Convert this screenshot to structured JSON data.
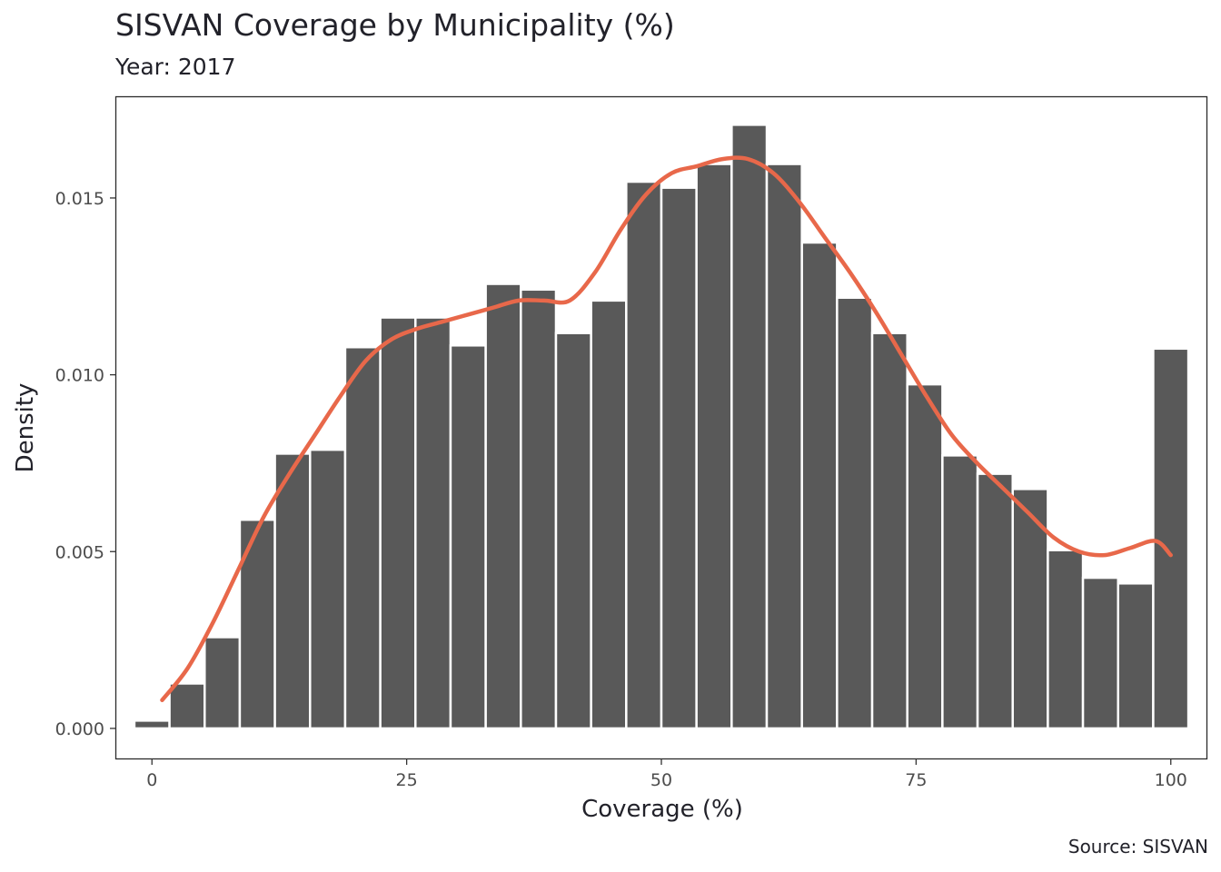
{
  "chart_data": {
    "type": "bar",
    "title": "SISVAN Coverage by Municipality (%)",
    "subtitle": "Year: 2017",
    "xlabel": "Coverage (%)",
    "ylabel": "Density",
    "caption": "Source: SISVAN",
    "xlim": [
      -3.5,
      103.5
    ],
    "ylim": [
      -0.00085,
      0.01785
    ],
    "x_ticks": [
      0,
      25,
      50,
      75,
      100
    ],
    "y_ticks": [
      0.0,
      0.005,
      0.01,
      0.015
    ],
    "y_tick_labels": [
      "0.000",
      "0.005",
      "0.010",
      "0.015"
    ],
    "grid": false,
    "bin_width": 3.4483,
    "bar_color": "#595959",
    "bar_outline_color": "#ffffff",
    "density_color": "#e8684a",
    "series": [
      {
        "type": "histogram",
        "bin_centers": [
          0,
          3.448,
          6.897,
          10.345,
          13.793,
          17.241,
          20.69,
          24.138,
          27.586,
          31.034,
          34.483,
          37.931,
          41.379,
          44.828,
          48.276,
          51.724,
          55.172,
          58.621,
          62.069,
          65.517,
          68.966,
          72.414,
          75.862,
          79.31,
          82.759,
          86.207,
          89.655,
          93.103,
          96.552,
          100
        ],
        "values": [
          0.00022,
          0.00127,
          0.00258,
          0.0059,
          0.00777,
          0.00788,
          0.01078,
          0.01162,
          0.01162,
          0.01083,
          0.01257,
          0.01241,
          0.01118,
          0.0121,
          0.01546,
          0.01529,
          0.01596,
          0.01707,
          0.01596,
          0.01374,
          0.01218,
          0.01118,
          0.00973,
          0.00772,
          0.0072,
          0.00677,
          0.00504,
          0.00426,
          0.0041,
          0.01074
        ]
      },
      {
        "type": "density_line",
        "x": [
          1,
          3.5,
          6,
          8.5,
          11,
          13.5,
          16,
          18.5,
          21,
          23.5,
          26,
          28.5,
          31,
          33.5,
          36,
          38.5,
          41,
          43.5,
          46,
          48.5,
          51,
          53.5,
          56,
          58.5,
          61,
          63.5,
          66,
          68.5,
          71,
          73.5,
          76,
          78.5,
          81,
          83.5,
          86,
          88.5,
          91,
          93.5,
          96,
          98.5,
          100
        ],
        "y": [
          0.0008,
          0.0017,
          0.003,
          0.0045,
          0.006,
          0.0072,
          0.0083,
          0.0094,
          0.0104,
          0.011,
          0.0113,
          0.0115,
          0.0117,
          0.0119,
          0.0121,
          0.0121,
          0.0121,
          0.0129,
          0.0141,
          0.0151,
          0.0157,
          0.0159,
          0.0161,
          0.0161,
          0.0157,
          0.0149,
          0.0139,
          0.0129,
          0.0118,
          0.0106,
          0.0094,
          0.0083,
          0.0075,
          0.0068,
          0.0061,
          0.0054,
          0.005,
          0.0049,
          0.0051,
          0.0053,
          0.0049
        ]
      }
    ]
  }
}
